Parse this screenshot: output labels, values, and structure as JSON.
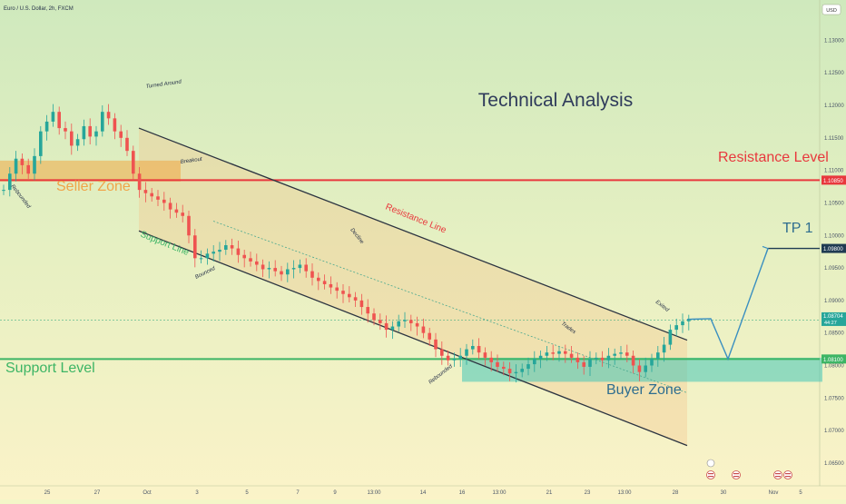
{
  "header": {
    "symbol_title": "Euro / U.S. Dollar, 2h, FXCM",
    "currency_badge": "USD"
  },
  "chart_data": {
    "type": "candlestick",
    "title": "Technical Analysis",
    "y_range": [
      1.0615,
      1.1355
    ],
    "y_ticks": [
      "1.13000",
      "1.12500",
      "1.12000",
      "1.11500",
      "1.11000",
      "1.10500",
      "1.10000",
      "1.09500",
      "1.09000",
      "1.08500",
      "1.08000",
      "1.07500",
      "1.07000",
      "1.06500"
    ],
    "x_ticks": [
      "25",
      "27",
      "Oct",
      "3",
      "5",
      "7",
      "9",
      "13:00",
      "14",
      "16",
      "13:00",
      "21",
      "23",
      "13:00",
      "28",
      "30",
      "Nov",
      "5"
    ],
    "price_labels": {
      "resistance": "1.10850",
      "tp": "1.09800",
      "current_price": "1.08704",
      "current_sub": "44:27",
      "support": "1.08100"
    },
    "levels": {
      "resistance_level": 1.1085,
      "tp1": 1.098,
      "support_level": 1.081,
      "seller_zone": [
        1.1083,
        1.1115
      ],
      "buyer_zone": [
        1.0775,
        1.0812
      ],
      "resistance_line": [
        [
          0,
          1.1165
        ],
        [
          110,
          1.0839
        ]
      ],
      "support_line": [
        [
          0,
          1.1007
        ],
        [
          110,
          1.0677
        ]
      ]
    },
    "zone_labels": {
      "seller_zone": "Seller Zone",
      "buyer_zone": "Buyer Zone",
      "resistance_level": "Resistance Level",
      "support_level": "Support Level",
      "resistance_line": "Resistance Line",
      "support_line": "Support Line",
      "tp1": "TP 1"
    },
    "annotations": [
      "Turned Around",
      "Breakout",
      "Rebounded",
      "Bounced",
      "Decline",
      "Rebounded",
      "Trades",
      "Exited"
    ],
    "series": [
      {
        "close": [
          1.107,
          1.1095,
          1.1118,
          1.1108,
          1.1095,
          1.1122,
          1.116,
          1.1175,
          1.119,
          1.1165,
          1.116,
          1.1138,
          1.1148,
          1.1168,
          1.1152,
          1.116,
          1.119,
          1.118,
          1.116,
          1.115,
          1.113,
          1.1095,
          1.107,
          1.1065,
          1.106,
          1.1055,
          1.105,
          1.104,
          1.1035,
          1.103,
          1.1,
          1.0965,
          1.0965,
          1.0972,
          1.0975,
          1.0978,
          1.0985,
          1.098,
          1.097,
          1.0965,
          1.096,
          1.0955,
          1.0948,
          1.095,
          1.0945,
          1.094,
          1.0948,
          1.095,
          1.0955,
          1.0945,
          1.0935,
          1.093,
          1.0925,
          1.092,
          1.0915,
          1.091,
          1.0905,
          1.09,
          1.089,
          1.088,
          1.087,
          1.0865,
          1.0855,
          1.086,
          1.0868,
          1.087,
          1.0865,
          1.086,
          1.085,
          1.084,
          1.0825,
          1.0815,
          1.0808,
          1.081,
          1.0815,
          1.0825,
          1.083,
          1.082,
          1.0812,
          1.0805,
          1.0798,
          1.0795,
          1.0788,
          1.079,
          1.0795,
          1.0802,
          1.081,
          1.0815,
          1.082,
          1.0818,
          1.0822,
          1.0818,
          1.0812,
          1.0805,
          1.0798,
          1.081,
          1.0812,
          1.0808,
          1.0815,
          1.0818,
          1.082,
          1.0815,
          1.08,
          1.079,
          1.08,
          1.081,
          1.082,
          1.0832,
          1.0855,
          1.0862,
          1.0868,
          1.087
        ]
      }
    ]
  }
}
